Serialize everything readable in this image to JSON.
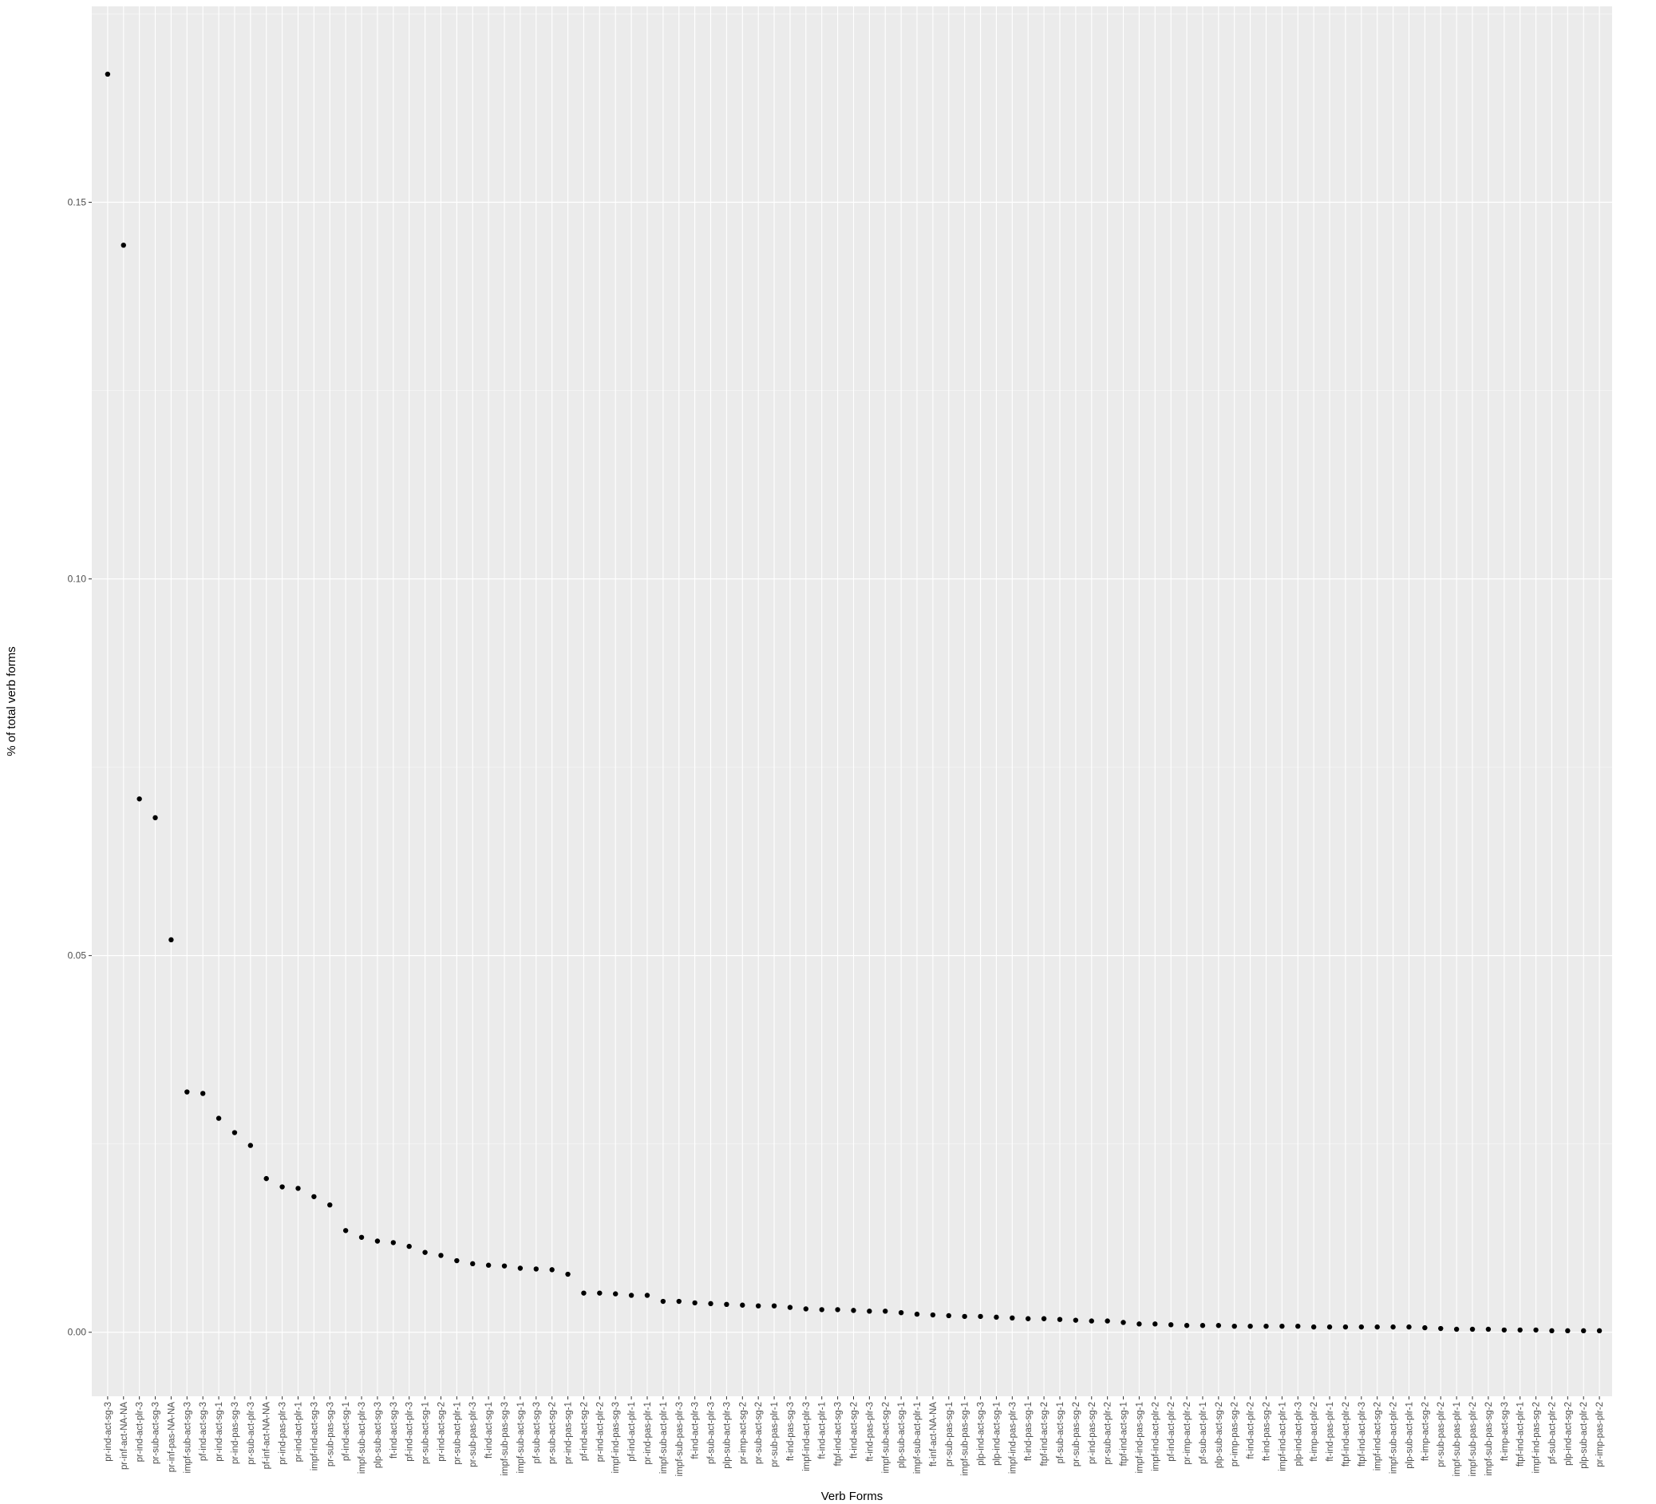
{
  "chart_data": {
    "type": "scatter",
    "title": "",
    "xlabel": "Verb Forms",
    "ylabel": "% of total verb forms",
    "ylim": [
      -0.0085,
      0.176
    ],
    "yticks": [
      "0.00",
      "0.05",
      "0.10",
      "0.15"
    ],
    "ytick_values": [
      0.0,
      0.05,
      0.1,
      0.15
    ],
    "grid": true,
    "legend": "none",
    "colors": {
      "panel": "#ebebeb",
      "grid_major": "#ffffff",
      "grid_minor": "#f5f5f5",
      "point": "#000000",
      "text": "#4d4d4d"
    },
    "categories": [
      "pr-ind-act-sg-3",
      "pr-inf-act-NA-NA",
      "pr-ind-act-plr-3",
      "pr-sub-act-sg-3",
      "pr-inf-pas-NA-NA",
      "impf-sub-act-sg-3",
      "pf-ind-act-sg-3",
      "pr-ind-act-sg-1",
      "pr-ind-pas-sg-3",
      "pr-sub-act-plr-3",
      "pf-inf-act-NA-NA",
      "pr-ind-pas-plr-3",
      "pr-ind-act-plr-1",
      "impf-ind-act-sg-3",
      "pr-sub-pas-sg-3",
      "pf-ind-act-sg-1",
      "impf-sub-act-plr-3",
      "plp-sub-act-sg-3",
      "ft-ind-act-sg-3",
      "pf-ind-act-plr-3",
      "pr-sub-act-sg-1",
      "pr-ind-act-sg-2",
      "pr-sub-act-plr-1",
      "pr-sub-pas-plr-3",
      "ft-ind-act-sg-1",
      "impf-sub-pas-sg-3",
      "impf-sub-act-sg-1",
      "pf-sub-act-sg-3",
      "pr-sub-act-sg-2",
      "pr-ind-pas-sg-1",
      "pf-ind-act-sg-2",
      "pr-ind-act-plr-2",
      "impf-ind-pas-sg-3",
      "pf-ind-act-plr-1",
      "pr-ind-pas-plr-1",
      "impf-sub-act-plr-1",
      "impf-sub-pas-plr-3",
      "ft-ind-act-plr-3",
      "pf-sub-act-plr-3",
      "plp-sub-act-plr-3",
      "pr-imp-act-sg-2",
      "pr-sub-act-sg-2",
      "pr-sub-pas-plr-1",
      "ft-ind-pas-sg-3",
      "impf-ind-act-plr-3",
      "ft-ind-act-plr-1",
      "ftpf-ind-act-sg-3",
      "ft-ind-act-sg-2",
      "ft-ind-pas-plr-3",
      "impf-sub-act-sg-2",
      "plp-sub-act-sg-1",
      "impf-sub-act-plr-1",
      "ft-inf-act-NA-NA",
      "pr-sub-pas-sg-1",
      "impf-sub-pas-sg-1",
      "plp-ind-act-sg-3",
      "plp-ind-act-sg-1",
      "impf-ind-pas-plr-3",
      "ft-ind-pas-sg-1",
      "ftpf-ind-act-sg-2",
      "pf-sub-act-sg-1",
      "pr-sub-pas-sg-2",
      "pr-ind-pas-sg-2",
      "pr-sub-act-plr-2",
      "ftpf-ind-act-sg-1",
      "impf-ind-pas-sg-1",
      "impf-ind-act-plr-2",
      "pf-ind-act-plr-2",
      "pr-imp-act-plr-2",
      "pf-sub-act-plr-1",
      "plp-sub-act-sg-2",
      "pr-imp-pas-sg-2",
      "ft-ind-act-plr-2",
      "ft-ind-pas-sg-2",
      "impf-ind-act-plr-1",
      "plp-ind-act-plr-3",
      "ft-imp-act-plr-2",
      "ft-ind-pas-plr-1",
      "ftpf-ind-act-plr-2",
      "ftpf-ind-act-plr-3",
      "impf-ind-act-sg-2",
      "impf-sub-act-plr-2",
      "plp-sub-act-plr-1",
      "ft-imp-act-sg-2",
      "pr-sub-pas-plr-2",
      "impf-sub-pas-plr-1",
      "impf-sub-pas-plr-2",
      "impf-sub-pas-sg-2",
      "ft-imp-act-sg-3",
      "ftpf-ind-act-plr-1",
      "impf-ind-pas-sg-2",
      "pf-sub-act-plr-2",
      "plp-ind-act-sg-2",
      "plp-sub-act-plr-2",
      "pr-imp-pas-plr-2"
    ],
    "values": [
      0.167,
      0.1443,
      0.0708,
      0.0683,
      0.0521,
      0.0319,
      0.0317,
      0.0284,
      0.0265,
      0.0248,
      0.0204,
      0.0193,
      0.0191,
      0.018,
      0.0169,
      0.0135,
      0.0126,
      0.0121,
      0.0119,
      0.0114,
      0.0106,
      0.0102,
      0.0095,
      0.0091,
      0.0089,
      0.0088,
      0.0085,
      0.0084,
      0.0083,
      0.0077,
      0.0052,
      0.0052,
      0.0051,
      0.0049,
      0.0049,
      0.0041,
      0.0041,
      0.0039,
      0.0038,
      0.0037,
      0.0036,
      0.0035,
      0.0035,
      0.0033,
      0.0031,
      0.003,
      0.003,
      0.0029,
      0.0028,
      0.0028,
      0.0026,
      0.0024,
      0.0023,
      0.0022,
      0.0021,
      0.0021,
      0.002,
      0.0019,
      0.0018,
      0.0018,
      0.0017,
      0.0016,
      0.0015,
      0.0015,
      0.0013,
      0.0011,
      0.0011,
      0.001,
      0.0009,
      0.0009,
      0.0009,
      0.0008,
      0.0008,
      0.0008,
      0.0008,
      0.0008,
      0.0007,
      0.0007,
      0.0007,
      0.0007,
      0.0007,
      0.0007,
      0.0007,
      0.0006,
      0.0005,
      0.0004,
      0.0004,
      0.0004,
      0.0003,
      0.0003,
      0.0003,
      0.0002,
      0.0002,
      0.0002,
      0.0002
    ]
  }
}
